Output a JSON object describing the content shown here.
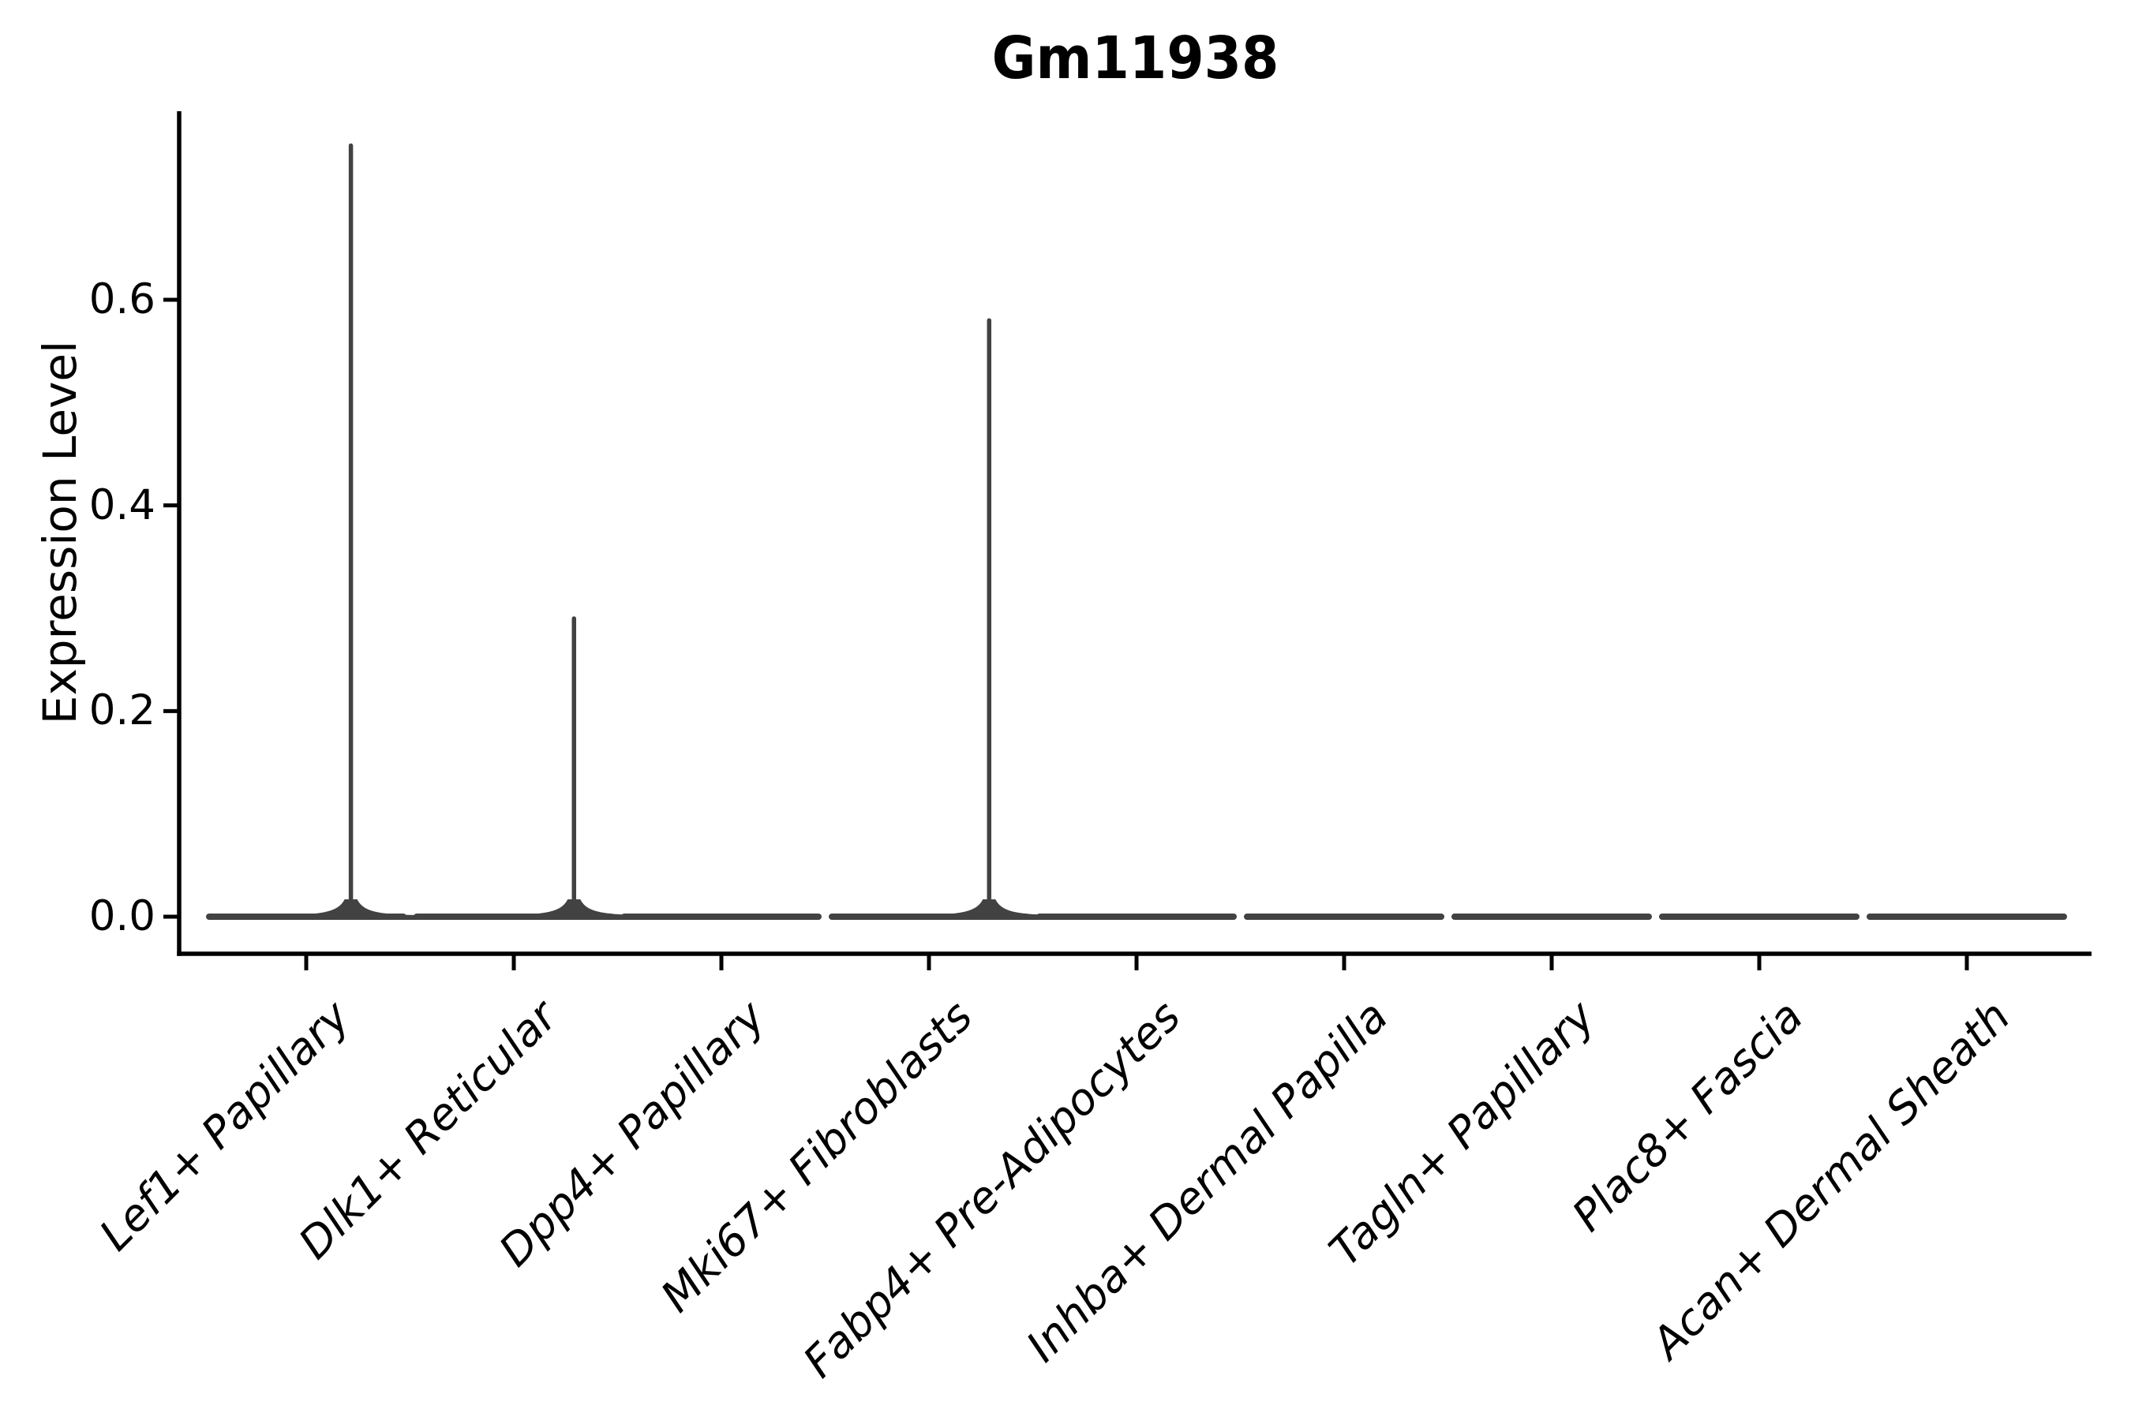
{
  "chart_data": {
    "type": "violin",
    "title": "Gm11938",
    "xlabel": "",
    "ylabel": "Expression Level",
    "categories": [
      "Lef1+ Papillary",
      "Dlk1+ Reticular",
      "Dpp4+ Papillary",
      "Mki67+ Fibroblasts",
      "Fabp4+ Pre-Adipocytes",
      "Inhba+ Dermal Papilla",
      "Tagln+ Papillary",
      "Plac8+ Fascia",
      "Acan+ Dermal Sheath"
    ],
    "ytick_labels": [
      "0.0",
      "0.2",
      "0.4",
      "0.6"
    ],
    "ytick_values": [
      0.0,
      0.2,
      0.4,
      0.6
    ],
    "ylim": [
      -0.04,
      0.78
    ],
    "grid": false,
    "legend": false,
    "background": "#ffffff",
    "axis_color": "#000000",
    "violin_color": "#424242",
    "series": [
      {
        "category": "Lef1+ Papillary",
        "baseline": 0.0,
        "max": 0.75,
        "spike_offset_frac": 0.46
      },
      {
        "category": "Dlk1+ Reticular",
        "baseline": 0.0,
        "max": 0.29,
        "spike_offset_frac": 0.62
      },
      {
        "category": "Dpp4+ Papillary",
        "baseline": 0.0,
        "max": 0.0,
        "spike_offset_frac": 0
      },
      {
        "category": "Mki67+ Fibroblasts",
        "baseline": 0.0,
        "max": 0.58,
        "spike_offset_frac": 0.62
      },
      {
        "category": "Fabp4+ Pre-Adipocytes",
        "baseline": 0.0,
        "max": 0.0,
        "spike_offset_frac": 0
      },
      {
        "category": "Inhba+ Dermal Papilla",
        "baseline": 0.0,
        "max": 0.0,
        "spike_offset_frac": 0
      },
      {
        "category": "Tagln+ Papillary",
        "baseline": 0.0,
        "max": 0.0,
        "spike_offset_frac": 0
      },
      {
        "category": "Plac8+ Fascia",
        "baseline": 0.0,
        "max": 0.0,
        "spike_offset_frac": 0
      },
      {
        "category": "Acan+ Dermal Sheath",
        "baseline": 0.0,
        "max": 0.0,
        "spike_offset_frac": 0
      }
    ]
  }
}
